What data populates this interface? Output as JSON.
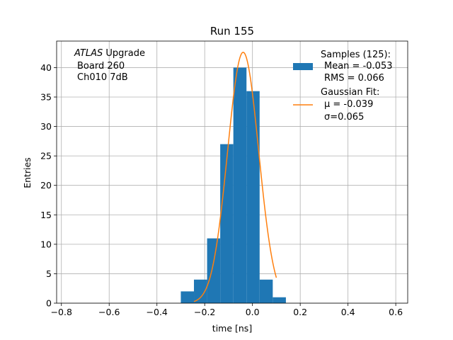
{
  "chart_data": {
    "type": "histogram",
    "title": "Run 155",
    "xlabel": "time [ns]",
    "ylabel": "Entries",
    "xlim": [
      -0.82,
      0.65
    ],
    "ylim": [
      0,
      44.5
    ],
    "x_ticks": [
      -0.8,
      -0.6,
      -0.4,
      -0.2,
      0.0,
      0.2,
      0.4,
      0.6
    ],
    "x_tick_labels": [
      "−0.8",
      "−0.6",
      "−0.4",
      "−0.2",
      "0.0",
      "0.2",
      "0.4",
      "0.6"
    ],
    "y_ticks": [
      0,
      5,
      10,
      15,
      20,
      25,
      30,
      35,
      40
    ],
    "y_tick_labels": [
      "0",
      "5",
      "10",
      "15",
      "20",
      "25",
      "30",
      "35",
      "40"
    ],
    "grid": true,
    "histogram": {
      "name": "Samples (125):",
      "color": "#1f77b4",
      "bin_edges": [
        -0.3,
        -0.245,
        -0.19,
        -0.135,
        -0.08,
        -0.025,
        0.03,
        0.085,
        0.14
      ],
      "counts": [
        2,
        4,
        11,
        27,
        40,
        36,
        4,
        1
      ]
    },
    "fit": {
      "name": "Gaussian Fit:",
      "color": "#ff7f0e",
      "amplitude": 42.6,
      "mu": -0.039,
      "sigma": 0.065,
      "x_range": [
        -0.245,
        0.1
      ]
    },
    "legend": {
      "placement": "top-right",
      "samples_title": "Samples (125):",
      "samples_mean": "Mean = -0.053",
      "samples_rms": "RMS = 0.066",
      "fit_title": "Gaussian Fit:",
      "fit_mu": "μ = -0.039",
      "fit_sigma": "σ=0.065"
    },
    "annotation": {
      "italic": "ATLAS",
      "rest": " Upgrade",
      "line2": "Board 260",
      "line3": "Ch010 7dB"
    }
  }
}
